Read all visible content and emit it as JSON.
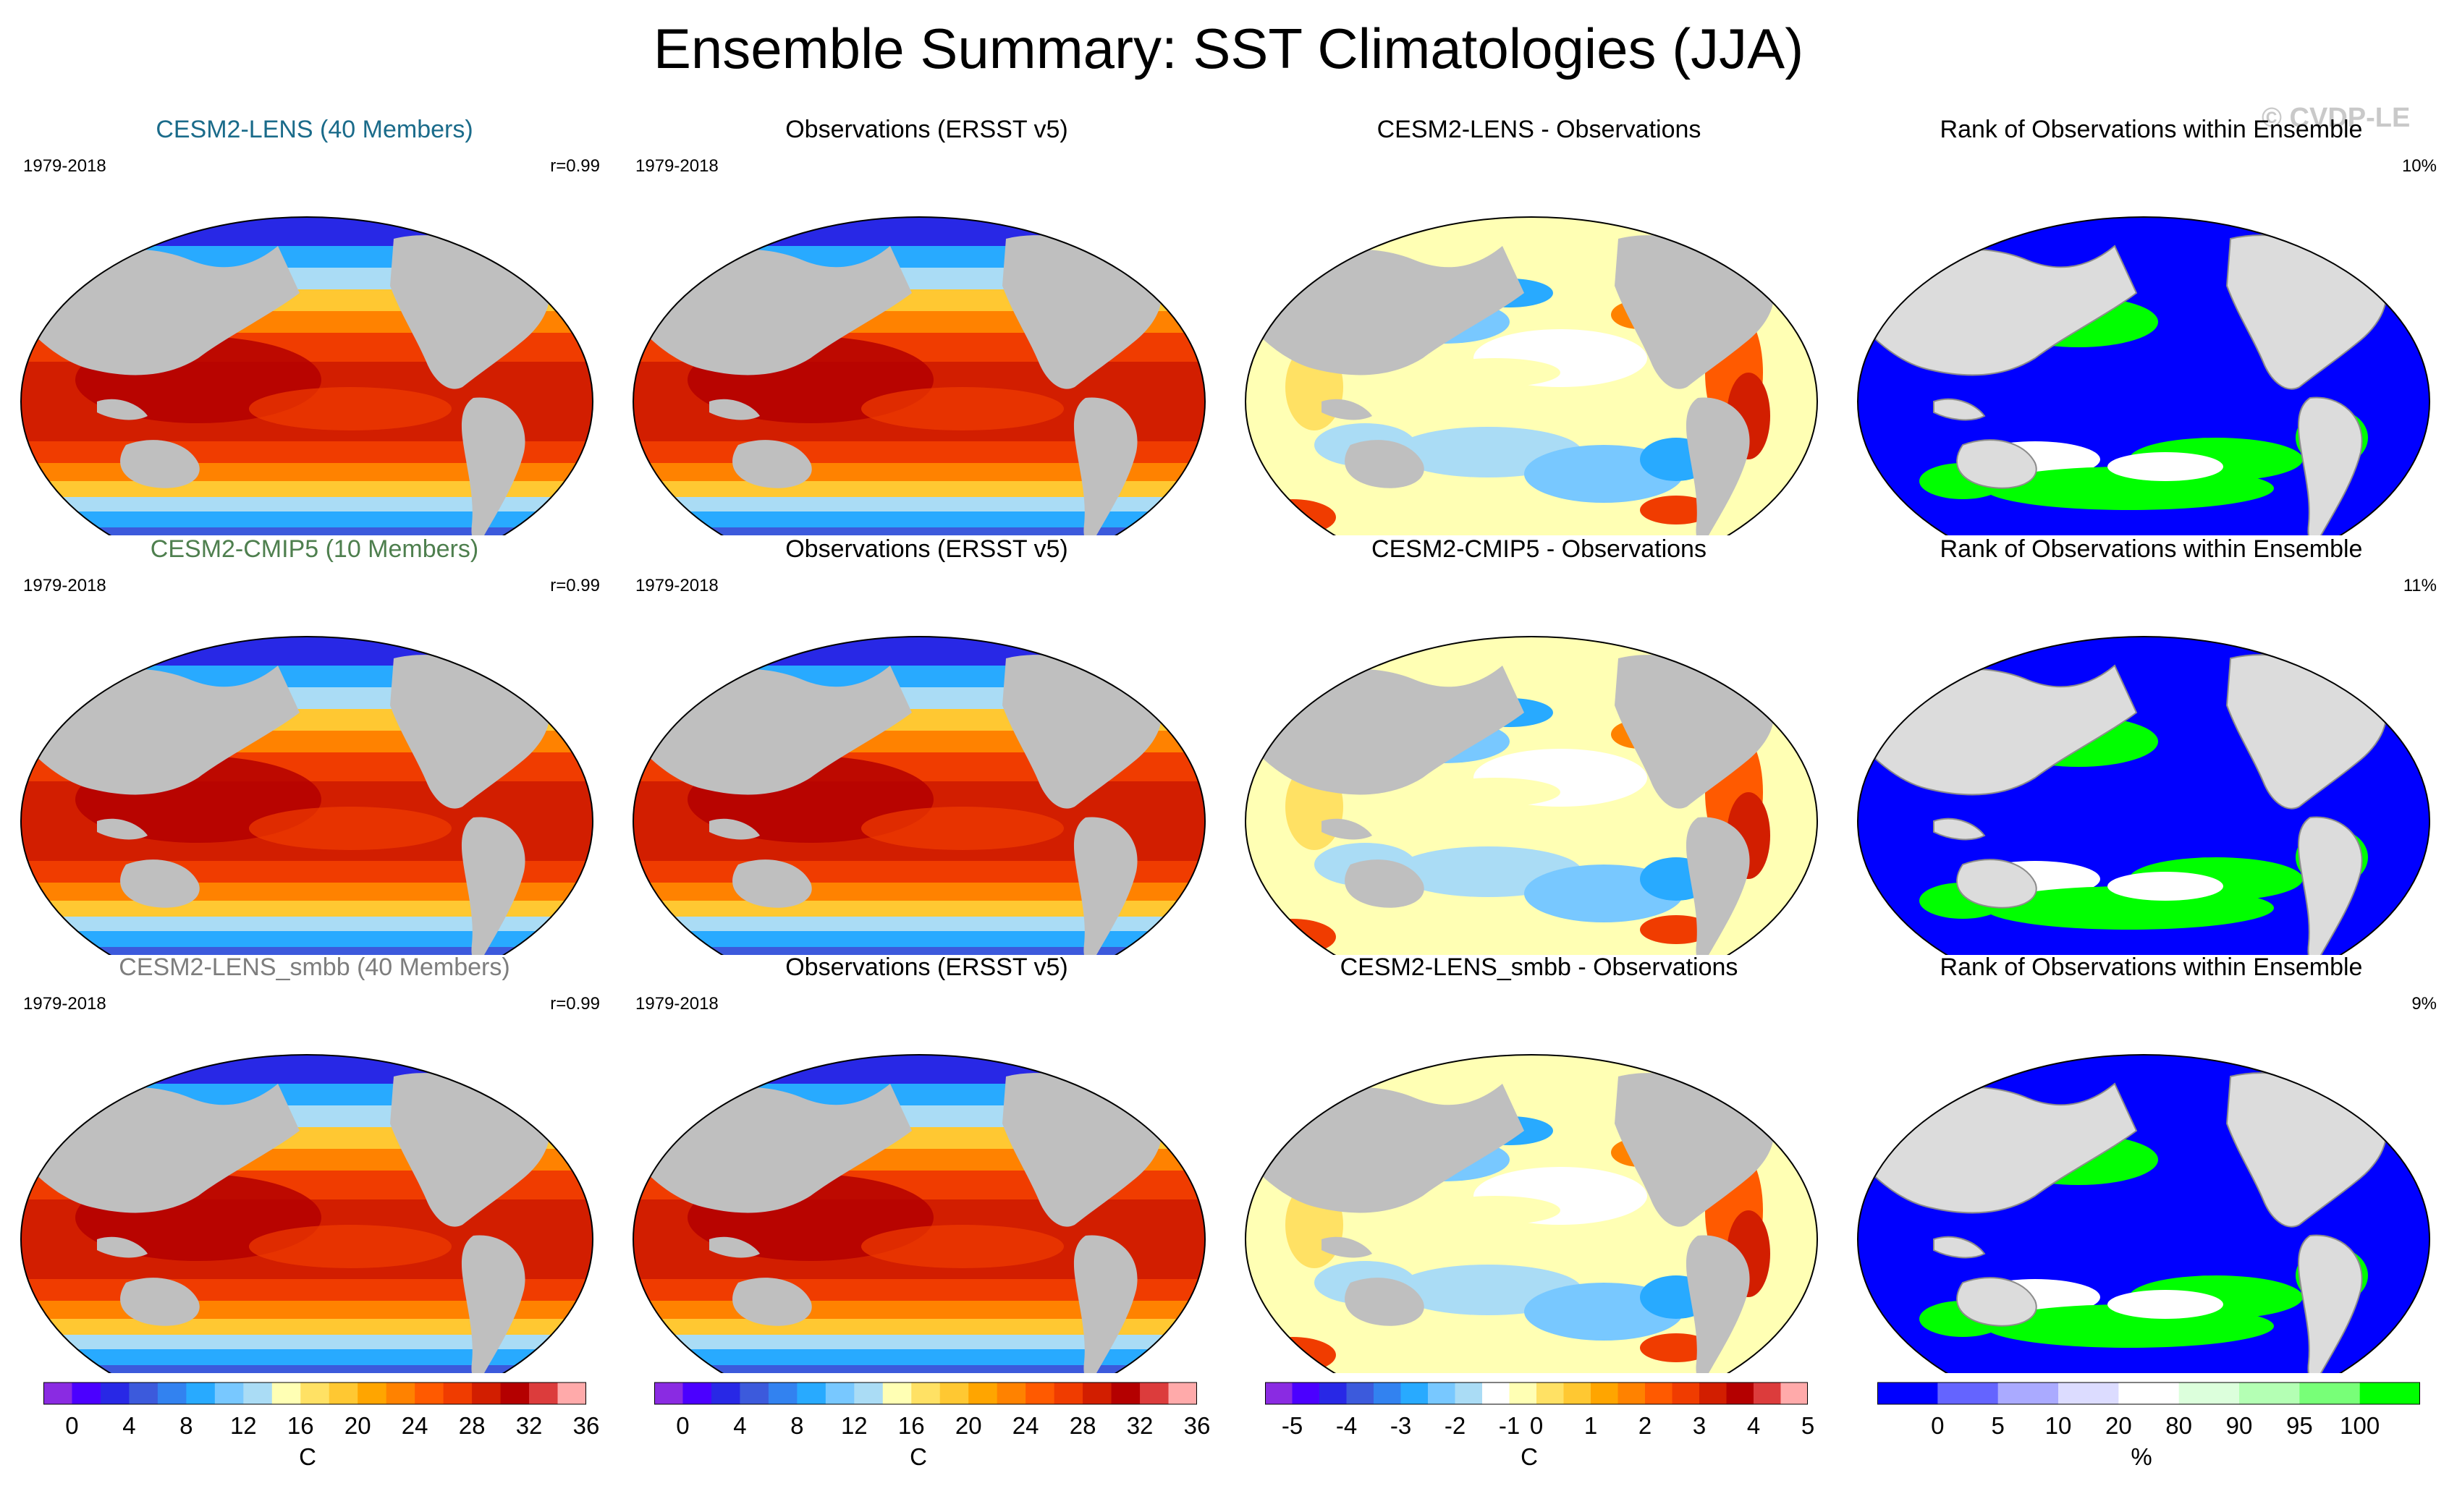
{
  "title": "Ensemble Summary: SST Climatologies (JJA)",
  "watermark": "© CVDP-LE",
  "colors": {
    "land": "#bfbfbf",
    "ocean_base": "#ffffff",
    "sst_scale": [
      "#8a2be2",
      "#4b00ff",
      "#2828e6",
      "#3c5adc",
      "#3282f0",
      "#28aaff",
      "#78c8ff",
      "#aadcf5",
      "#ffffb4",
      "#ffe164",
      "#ffc832",
      "#ffa500",
      "#ff8200",
      "#ff5a00",
      "#f03c00",
      "#d21e00",
      "#b40000",
      "#dc3c3c",
      "#ffaaaa"
    ],
    "diff_scale": [
      "#8a2be2",
      "#4b00ff",
      "#2828e6",
      "#3c5adc",
      "#3282f0",
      "#28aaff",
      "#78c8ff",
      "#aadcf5",
      "#ffffff",
      "#ffffb4",
      "#ffe164",
      "#ffc832",
      "#ffa500",
      "#ff8200",
      "#ff5a00",
      "#f03c00",
      "#d21e00",
      "#b40000",
      "#dc3c3c",
      "#ffaaaa"
    ],
    "rank_scale": [
      "#0000ff",
      "#6464ff",
      "#aaaaff",
      "#dcdcff",
      "#ffffff",
      "#dcffdc",
      "#b4ffb4",
      "#78ff78",
      "#00ff00"
    ]
  },
  "rows": [
    {
      "model": {
        "title": "CESM2-LENS (40 Members)",
        "title_color": "#1a6b8a",
        "period": "1979-2018",
        "corr": "r=0.99"
      },
      "obs": {
        "title": "Observations (ERSST v5)",
        "period": "1979-2018"
      },
      "diff": {
        "title": "CESM2-LENS - Observations"
      },
      "rank": {
        "title": "Rank of Observations within Ensemble",
        "pct": "10%"
      }
    },
    {
      "model": {
        "title": "CESM2-CMIP5 (10 Members)",
        "title_color": "#4e7f4e",
        "period": "1979-2018",
        "corr": "r=0.99"
      },
      "obs": {
        "title": "Observations (ERSST v5)",
        "period": "1979-2018"
      },
      "diff": {
        "title": "CESM2-CMIP5 - Observations"
      },
      "rank": {
        "title": "Rank of Observations within Ensemble",
        "pct": "11%"
      }
    },
    {
      "model": {
        "title": "CESM2-LENS_smbb (40 Members)",
        "title_color": "#7d7d7d",
        "period": "1979-2018",
        "corr": "r=0.99"
      },
      "obs": {
        "title": "Observations (ERSST v5)",
        "period": "1979-2018"
      },
      "diff": {
        "title": "CESM2-LENS_smbb - Observations"
      },
      "rank": {
        "title": "Rank of Observations within Ensemble",
        "pct": "9%"
      }
    }
  ],
  "colorbars": [
    {
      "kind": "sst",
      "ticks": [
        "0",
        "4",
        "8",
        "12",
        "16",
        "20",
        "24",
        "28",
        "32",
        "36"
      ],
      "unit": "C"
    },
    {
      "kind": "sst",
      "ticks": [
        "0",
        "4",
        "8",
        "12",
        "16",
        "20",
        "24",
        "28",
        "32",
        "36"
      ],
      "unit": "C"
    },
    {
      "kind": "diff",
      "ticks": [
        "-5",
        "-4",
        "-3",
        "-2",
        "-1",
        "0",
        "1",
        "2",
        "3",
        "4",
        "5"
      ],
      "unit": "C"
    },
    {
      "kind": "rank",
      "ticks": [
        "0",
        "5",
        "10",
        "20",
        "80",
        "90",
        "95",
        "100"
      ],
      "unit": "%"
    }
  ]
}
